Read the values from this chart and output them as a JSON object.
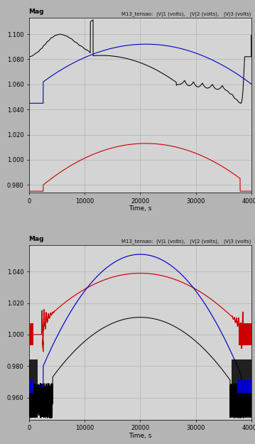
{
  "title": "M13_tensao:  |V|1 (volts),   |V|2 (volts),   |V|3 (volts)",
  "xlabel": "Time, s",
  "ylabel_label": "Mag",
  "background_color": "#d4d4d4",
  "fig_bg": "#b4b4b4",
  "plot1": {
    "xlim": [
      0,
      40000
    ],
    "ylim": [
      0.974,
      1.113
    ],
    "yticks": [
      0.98,
      1.0,
      1.02,
      1.04,
      1.06,
      1.08,
      1.1
    ],
    "xticks": [
      0,
      10000,
      20000,
      30000,
      40000
    ]
  },
  "plot2": {
    "xlim": [
      0,
      40000
    ],
    "ylim": [
      0.946,
      1.057
    ],
    "yticks": [
      0.96,
      0.98,
      1.0,
      1.02,
      1.04
    ],
    "xticks": [
      0,
      10000,
      20000,
      30000,
      40000
    ]
  },
  "colors": {
    "red": "#cc0000",
    "blue": "#0000cc",
    "black": "#000000",
    "grid": "#aaaaaa"
  }
}
